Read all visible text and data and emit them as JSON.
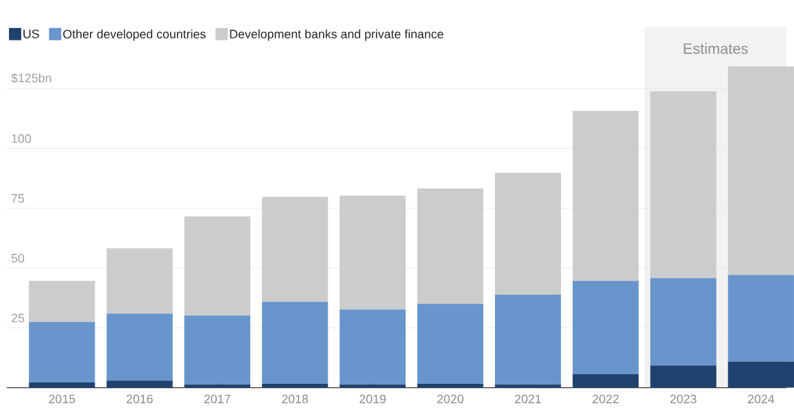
{
  "chart_data": {
    "type": "bar",
    "stacked": true,
    "categories": [
      "2015",
      "2016",
      "2017",
      "2018",
      "2019",
      "2020",
      "2021",
      "2022",
      "2023",
      "2024"
    ],
    "series": [
      {
        "name": "US",
        "color": "#1f416e",
        "values": [
          2.2,
          3.0,
          1.4,
          1.6,
          1.4,
          1.6,
          1.4,
          5.7,
          9.3,
          10.9
        ]
      },
      {
        "name": "Other developed countries",
        "color": "#6795cc",
        "values": [
          25.3,
          28.0,
          28.8,
          34.3,
          31.3,
          33.5,
          37.5,
          39.0,
          36.5,
          36.2
        ]
      },
      {
        "name": "Development banks and private finance",
        "color": "#cccccc",
        "values": [
          17.2,
          27.3,
          41.4,
          43.9,
          47.6,
          48.2,
          51.0,
          71.0,
          78.1,
          87.2
        ]
      }
    ],
    "ylim": [
      0,
      151
    ],
    "yticks": [
      25,
      50,
      75,
      100,
      {
        "value": 125,
        "label": "$125bn"
      }
    ],
    "grid": "y",
    "legend": "top left",
    "bands": [
      {
        "axis": "x",
        "from": "2023",
        "to": "2024",
        "label": "Estimates",
        "color": "#f2f2f2"
      }
    ]
  }
}
